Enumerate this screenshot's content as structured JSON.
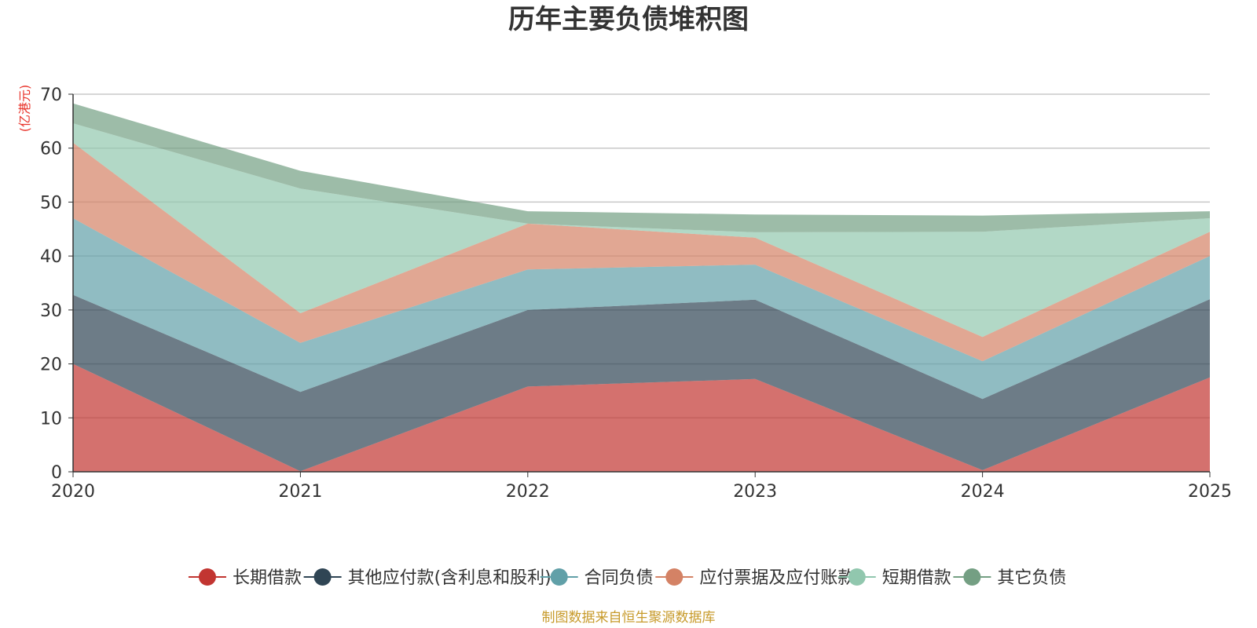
{
  "colors": {
    "title": "#333333",
    "unit": "#e8332a",
    "source": "#c79a2a",
    "grid": "#c8c8c8",
    "axis": "#333333"
  },
  "chart_data": {
    "type": "area",
    "stacked": true,
    "title": "历年主要负债堆积图",
    "unit_label": "(亿港元)",
    "source": "制图数据来自恒生聚源数据库",
    "x": [
      "2020",
      "2021",
      "2022",
      "2023",
      "2024",
      "2025"
    ],
    "ylim": [
      0,
      70
    ],
    "yticks": [
      0,
      10,
      20,
      30,
      40,
      50,
      60,
      70
    ],
    "grid": true,
    "legend_position": "bottom",
    "series": [
      {
        "name": "长期借款",
        "color": "#c23531",
        "values": [
          20.0,
          0.1,
          15.8,
          17.2,
          0.3,
          17.5
        ]
      },
      {
        "name": "其他应付款(含利息和股利)",
        "color": "#2f4554",
        "values": [
          12.8,
          14.7,
          14.2,
          14.7,
          13.2,
          14.5
        ]
      },
      {
        "name": "合同负债",
        "color": "#61a0a8",
        "values": [
          14.2,
          9.1,
          7.5,
          6.5,
          7.0,
          8.0
        ]
      },
      {
        "name": "应付票据及应付账款",
        "color": "#d48265",
        "values": [
          14.0,
          5.5,
          8.5,
          5.0,
          4.5,
          4.5
        ]
      },
      {
        "name": "短期借款",
        "color": "#91c7ae",
        "values": [
          3.6,
          23.1,
          0.0,
          1.0,
          19.5,
          2.5
        ]
      },
      {
        "name": "其它负债",
        "color": "#749f83",
        "values": [
          3.7,
          3.3,
          2.3,
          3.3,
          3.0,
          1.3
        ]
      }
    ]
  }
}
